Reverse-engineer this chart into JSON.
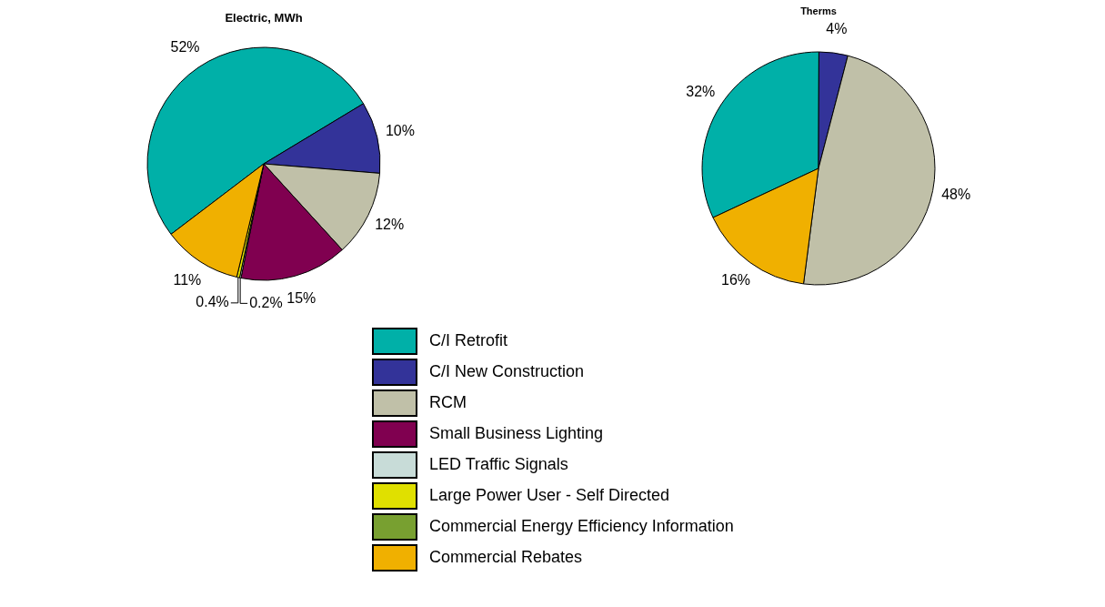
{
  "chart_data": [
    {
      "type": "pie",
      "title": "Electric, MWh",
      "categories": [
        "C/I Retrofit",
        "C/I New Construction",
        "RCM",
        "Small Business Lighting",
        "LED Traffic Signals",
        "Large Power User - Self Directed",
        "Commercial Energy Efficiency Information",
        "Commercial Rebates"
      ],
      "values": [
        52,
        10,
        12,
        15,
        0.2,
        0.4,
        0,
        11
      ],
      "value_labels": [
        "52%",
        "10%",
        "12%",
        "15%",
        "0.2%",
        "0.4%",
        null,
        "11%"
      ],
      "colors": [
        "#00b0a8",
        "#333399",
        "#c0c0a8",
        "#800050",
        "#c8dcd8",
        "#e0e000",
        "#78a030",
        "#f0b000"
      ],
      "legend": "bottom"
    },
    {
      "type": "pie",
      "title": "Therms",
      "categories": [
        null,
        null,
        null,
        null
      ],
      "values": [
        32,
        4,
        48,
        16
      ],
      "value_labels": [
        "32%",
        "4%",
        "48%",
        "16%"
      ],
      "colors": [
        "#00b0a8",
        "#333399",
        "#c0c0a8",
        "#f0b000"
      ],
      "legend": false
    }
  ]
}
